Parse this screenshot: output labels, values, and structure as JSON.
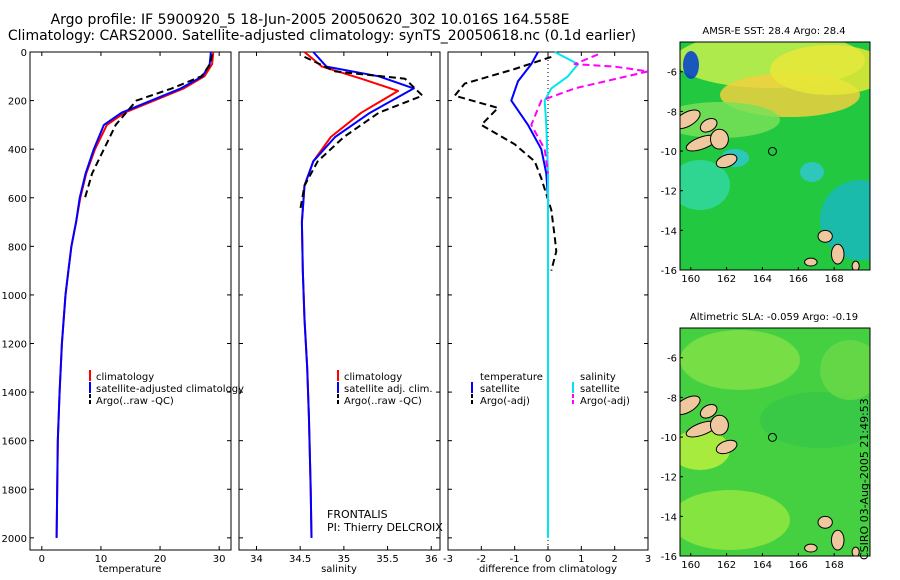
{
  "header": {
    "line1": "Argo profile: IF 5900920_5 18-Jun-2005 20050620_302 10.016S 164.558E",
    "line2": "Climatology: CARS2000. Satellite-adjusted climatology: synTS_20050618.nc (0.1d earlier)"
  },
  "credit": {
    "line1": "FRONTALIS",
    "line2": "PI: Thierry DELCROIX"
  },
  "stamp": "CSIRO 03-Aug-2005 21:49:53",
  "colors": {
    "climatology": "#ff0000",
    "satellite": "#0000ff",
    "argo": "#000000",
    "sal_satellite": "#00e5ee",
    "sal_argo": "#ff00ff",
    "land": "#f0c8a0",
    "sst_main": "#22c840",
    "sla_main": "#44d040"
  },
  "chart_data": [
    {
      "type": "line",
      "title": "",
      "xlabel": "temperature",
      "ylabel": "",
      "xlim": [
        -2,
        32
      ],
      "ylim": [
        2050,
        0
      ],
      "xticks": [
        0,
        10,
        20,
        30
      ],
      "yticks": [
        0,
        200,
        400,
        600,
        800,
        1000,
        1200,
        1400,
        1600,
        1800,
        2000
      ],
      "legend": [
        "climatology",
        "satellite-adjusted climatology",
        "Argo(..raw -QC)"
      ],
      "series": [
        {
          "name": "climatology",
          "style": "solid",
          "color": "#ff0000",
          "x": [
            29.0,
            28.8,
            27.5,
            24.0,
            19.0,
            14.0,
            11.0,
            9.0,
            7.5,
            6.5,
            5.8,
            5.0,
            4.5,
            4.0,
            3.4,
            3.0,
            2.7,
            2.5
          ],
          "y": [
            0,
            50,
            100,
            150,
            200,
            250,
            300,
            400,
            500,
            600,
            700,
            800,
            900,
            1000,
            1200,
            1400,
            1600,
            2000
          ]
        },
        {
          "name": "satellite-adjusted climatology",
          "style": "solid",
          "color": "#0000ff",
          "x": [
            28.6,
            28.4,
            27.2,
            23.5,
            18.5,
            13.5,
            10.5,
            8.8,
            7.4,
            6.4,
            5.8,
            5.0,
            4.5,
            4.0,
            3.4,
            3.0,
            2.7,
            2.5
          ],
          "y": [
            0,
            50,
            100,
            150,
            200,
            250,
            300,
            400,
            500,
            600,
            700,
            800,
            900,
            1000,
            1200,
            1400,
            1600,
            2000
          ]
        },
        {
          "name": "Argo(..raw -QC)",
          "style": "dashed",
          "color": "#000000",
          "x": [
            28.8,
            28.5,
            27.0,
            22.0,
            16.0,
            12.5,
            10.5,
            8.5,
            7.3
          ],
          "y": [
            10,
            50,
            100,
            150,
            200,
            300,
            400,
            500,
            600
          ]
        }
      ]
    },
    {
      "type": "line",
      "title": "",
      "xlabel": "salinity",
      "ylabel": "",
      "xlim": [
        33.8,
        36.1
      ],
      "ylim": [
        2050,
        0
      ],
      "xticks": [
        34,
        34.5,
        35,
        35.5,
        36
      ],
      "legend": [
        "climatology",
        "satellite adj. clim.",
        "Argo(..raw -QC)"
      ],
      "series": [
        {
          "name": "climatology",
          "style": "solid",
          "color": "#ff0000",
          "x": [
            34.55,
            34.75,
            35.2,
            35.62,
            35.2,
            34.85,
            34.65,
            34.55,
            34.52,
            34.53,
            34.55,
            34.58,
            34.6,
            34.62,
            34.63
          ],
          "y": [
            0,
            60,
            110,
            160,
            250,
            350,
            450,
            550,
            700,
            900,
            1100,
            1300,
            1500,
            1800,
            2000
          ]
        },
        {
          "name": "satellite adj. clim.",
          "style": "solid",
          "color": "#0000ff",
          "x": [
            34.65,
            34.8,
            35.4,
            35.8,
            35.3,
            34.9,
            34.65,
            34.55,
            34.52,
            34.53,
            34.55,
            34.58,
            34.6,
            34.62,
            34.63
          ],
          "y": [
            0,
            60,
            100,
            150,
            250,
            350,
            450,
            550,
            700,
            900,
            1100,
            1300,
            1500,
            1800,
            2000
          ]
        },
        {
          "name": "Argo(..raw -QC)",
          "style": "dashed",
          "color": "#000000",
          "x": [
            34.55,
            34.9,
            35.7,
            35.9,
            35.4,
            35.0,
            34.7,
            34.55,
            34.5
          ],
          "y": [
            20,
            80,
            110,
            180,
            250,
            350,
            450,
            550,
            650
          ]
        }
      ]
    },
    {
      "type": "line",
      "title": "",
      "xlabel": "difference from climatology",
      "ylabel": "",
      "xlim": [
        -3,
        3
      ],
      "ylim": [
        2050,
        0
      ],
      "xticks": [
        -3,
        -2,
        -1,
        0,
        1,
        2,
        3
      ],
      "legend": [
        "temperature",
        "satellite",
        "Argo(-adj)",
        "salinity",
        "satellite",
        "Argo(-adj)"
      ],
      "series": [
        {
          "name": "satellite",
          "group": "temperature",
          "style": "solid",
          "color": "#0000ff",
          "x": [
            -0.3,
            -0.5,
            -0.9,
            -1.1,
            -0.6,
            -0.2,
            -0.05,
            0,
            0
          ],
          "y": [
            0,
            50,
            120,
            200,
            300,
            400,
            500,
            600,
            700
          ]
        },
        {
          "name": "Argo(-adj)",
          "group": "temperature",
          "style": "dashed",
          "color": "#000000",
          "x": [
            0.1,
            -1.0,
            -2.5,
            -2.8,
            -1.5,
            -2.0,
            -1.0,
            -0.4,
            -0.2,
            0.1,
            0.2,
            0.25,
            0.1
          ],
          "y": [
            20,
            70,
            130,
            180,
            230,
            300,
            380,
            450,
            520,
            650,
            760,
            820,
            900
          ]
        },
        {
          "name": "satellite",
          "group": "salinity",
          "style": "solid",
          "color": "#00e5ee",
          "x": [
            0.2,
            0.9,
            0.6,
            0.1,
            -0.1,
            -0.05,
            0,
            0,
            0
          ],
          "y": [
            0,
            50,
            100,
            150,
            200,
            300,
            500,
            800,
            2000
          ]
        },
        {
          "name": "Argo(-adj)",
          "group": "salinity",
          "style": "dashed",
          "color": "#ff00ff",
          "x": [
            1.5,
            0.8,
            2.0,
            3.0,
            0.8,
            -0.2,
            -0.5,
            -0.1,
            0
          ],
          "y": [
            10,
            50,
            60,
            80,
            150,
            200,
            300,
            400,
            500
          ]
        }
      ]
    },
    {
      "type": "heatmap",
      "title": "AMSR-E SST: 28.4 Argo: 28.4",
      "xlim": [
        159.4,
        170
      ],
      "ylim": [
        -16,
        -4.5
      ],
      "xticks": [
        160,
        162,
        164,
        166,
        168
      ],
      "yticks": [
        -6,
        -8,
        -10,
        -12,
        -14,
        -16
      ],
      "argo_position": {
        "lon": 164.558,
        "lat": -10.016
      }
    },
    {
      "type": "heatmap",
      "title": "Altimetric SLA: -0.059 Argo: -0.19",
      "xlim": [
        159.4,
        170
      ],
      "ylim": [
        -16,
        -4.5
      ],
      "xticks": [
        160,
        162,
        164,
        166,
        168
      ],
      "yticks": [
        -6,
        -8,
        -10,
        -12,
        -14,
        -16
      ],
      "argo_position": {
        "lon": 164.558,
        "lat": -10.016
      }
    }
  ]
}
